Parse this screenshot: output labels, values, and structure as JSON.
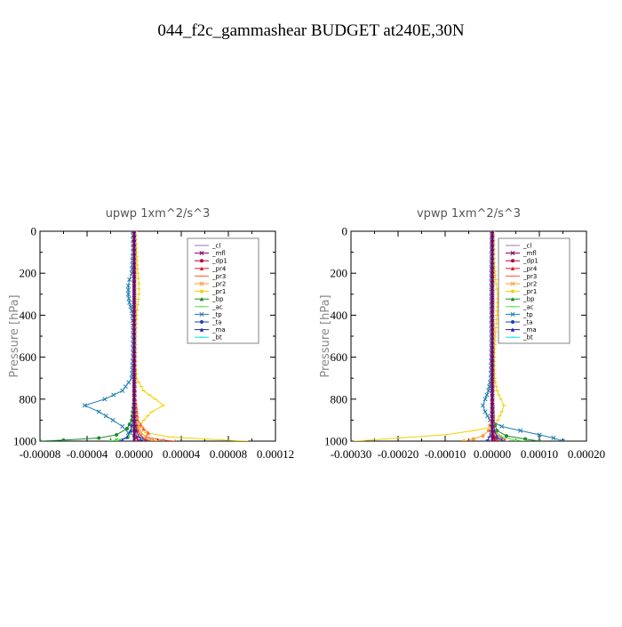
{
  "figure_title": "044_f2c_gammashear  BUDGET at240E,30N",
  "legend_labels": [
    "_cl",
    "_mfl",
    "_dp1",
    "_pr4",
    "_pr3",
    "_pr2",
    "_pr1",
    "_bp",
    "_ac",
    "_tp",
    "_ta",
    "_ma",
    "_bt"
  ],
  "colors": {
    "_cl": "#a070c0",
    "_mfl": "#800060",
    "_dp1": "#b0003a",
    "_pr4": "#e02020",
    "_pr3": "#ff5a3a",
    "_pr2": "#ff9a30",
    "_pr1": "#f2d000",
    "_bp": "#1a8a2a",
    "_ac": "#50e040",
    "_tp": "#1f7fb0",
    "_ta": "#1f3fbf",
    "_ma": "#2020a0",
    "_bt": "#00e0e8"
  },
  "chart_data": [
    {
      "type": "line",
      "title": "upwp   1xm^2/s^3",
      "ylabel": "Pressure [hPa]",
      "xlabel": "",
      "xlim": [
        -8e-05,
        0.00012
      ],
      "ylim": [
        1000,
        0
      ],
      "x_ticks": [
        "-0.00008",
        "-0.00004",
        "0.00000",
        "0.00004",
        "0.00008",
        "0.00012"
      ],
      "y_ticks": [
        "0",
        "200",
        "400",
        "600",
        "800",
        "1000"
      ],
      "legend_position": "top-right",
      "series": [
        {
          "name": "_pr1",
          "pressure": [
            0,
            100,
            200,
            250,
            300,
            350,
            400,
            500,
            600,
            700,
            760,
            800,
            830,
            860,
            900,
            930,
            960,
            980,
            990,
            1000
          ],
          "values": [
            1e-06,
            2e-06,
            3e-06,
            4e-06,
            4e-06,
            3e-06,
            2e-06,
            1e-06,
            1e-06,
            2e-06,
            8e-06,
            1.8e-05,
            2.5e-05,
            1.5e-05,
            8e-06,
            5e-06,
            1e-05,
            3e-05,
            6e-05,
            9.5e-05
          ]
        },
        {
          "name": "_tp",
          "pressure": [
            0,
            100,
            200,
            230,
            260,
            300,
            340,
            380,
            450,
            600,
            700,
            760,
            800,
            830,
            860,
            900,
            930,
            960,
            990,
            1000
          ],
          "values": [
            -1e-06,
            -1e-06,
            -2e-06,
            -4e-06,
            -5e-06,
            -5e-06,
            -4e-06,
            -2e-06,
            -1e-06,
            -1e-06,
            -2e-06,
            -1e-05,
            -2.5e-05,
            -4.2e-05,
            -3e-05,
            -1.8e-05,
            -1e-05,
            -5e-06,
            8e-06,
            1.5e-05
          ]
        },
        {
          "name": "_bp",
          "pressure": [
            0,
            400,
            800,
            900,
            940,
            970,
            985,
            995,
            1000
          ],
          "values": [
            0,
            0,
            0,
            -2e-06,
            -6e-06,
            -1.5e-05,
            -3e-05,
            -6e-05,
            -8e-05
          ]
        },
        {
          "name": "_pr3",
          "pressure": [
            0,
            400,
            800,
            900,
            940,
            960,
            980,
            995,
            1000
          ],
          "values": [
            0,
            0,
            1e-06,
            3e-06,
            8e-06,
            1.2e-05,
            1e-05,
            2.5e-05,
            3.5e-05
          ]
        },
        {
          "name": "_pr4",
          "pressure": [
            0,
            400,
            800,
            900,
            950,
            970,
            985,
            995,
            1000
          ],
          "values": [
            0,
            0,
            0,
            2e-06,
            3e-06,
            5e-06,
            8e-06,
            1e-05,
            1.2e-05
          ]
        },
        {
          "name": "_pr2",
          "pressure": [
            0,
            400,
            800,
            900,
            940,
            960,
            980,
            995,
            1000
          ],
          "values": [
            0,
            0,
            0,
            2e-06,
            4e-06,
            6e-06,
            1e-05,
            1.5e-05,
            2e-05
          ]
        },
        {
          "name": "_ac",
          "pressure": [
            0,
            400,
            800,
            900,
            950,
            980,
            995,
            1000
          ],
          "values": [
            0,
            0,
            0,
            0,
            -2e-06,
            -5e-06,
            -1.5e-05,
            -2e-05
          ]
        },
        {
          "name": "_ta",
          "pressure": [
            0,
            400,
            800,
            900,
            950,
            980,
            995,
            1000
          ],
          "values": [
            0,
            0,
            0,
            -1e-06,
            -3e-06,
            -6e-06,
            -1e-05,
            -1.2e-05
          ]
        },
        {
          "name": "_ma",
          "pressure": [
            0,
            400,
            800,
            900,
            950,
            980,
            995,
            1000
          ],
          "values": [
            0,
            0,
            0,
            1e-06,
            2e-06,
            4e-06,
            6e-06,
            8e-06
          ]
        },
        {
          "name": "_cl",
          "pressure": [
            0,
            200,
            400,
            600,
            800,
            900,
            950,
            1000
          ],
          "values": [
            0,
            0,
            0,
            0,
            0,
            0,
            0,
            0
          ]
        },
        {
          "name": "_bt",
          "pressure": [
            0,
            200,
            400,
            600,
            800,
            900,
            950,
            1000
          ],
          "values": [
            0,
            0,
            0,
            0,
            0,
            0,
            0,
            0
          ]
        },
        {
          "name": "_dp1",
          "pressure": [
            0,
            400,
            800,
            900,
            950,
            980,
            995,
            1000
          ],
          "values": [
            0,
            0,
            0,
            0,
            1e-06,
            2e-06,
            3e-06,
            4e-06
          ]
        },
        {
          "name": "_mfl",
          "pressure": [
            0,
            200,
            400,
            600,
            800,
            900,
            950,
            1000
          ],
          "values": [
            0,
            0,
            0,
            0,
            0,
            0,
            0,
            0
          ]
        }
      ]
    },
    {
      "type": "line",
      "title": "vpwp   1xm^2/s^3",
      "ylabel": "Pressure [hPa]",
      "xlabel": "",
      "xlim": [
        -0.0003,
        0.0002
      ],
      "ylim": [
        1000,
        0
      ],
      "x_ticks": [
        "-0.00030",
        "-0.00020",
        "-0.00010",
        "0.00000",
        "0.00010",
        "0.00020"
      ],
      "y_ticks": [
        "0",
        "200",
        "400",
        "600",
        "800",
        "1000"
      ],
      "legend_position": "top-right",
      "series": [
        {
          "name": "_pr1",
          "pressure": [
            0,
            150,
            250,
            300,
            400,
            500,
            600,
            700,
            760,
            800,
            830,
            860,
            900,
            930,
            950,
            970,
            985,
            1000
          ],
          "values": [
            2e-06,
            4e-06,
            8e-06,
            1.2e-05,
            1e-05,
            6e-06,
            4e-06,
            5e-06,
            1e-05,
            1.8e-05,
            2.5e-05,
            2e-05,
            1.2e-05,
            5e-06,
            -4e-05,
            -0.0001,
            -0.0002,
            -0.00029
          ]
        },
        {
          "name": "_tp",
          "pressure": [
            0,
            200,
            400,
            600,
            700,
            760,
            800,
            830,
            860,
            900,
            930,
            950,
            970,
            985,
            1000
          ],
          "values": [
            -1e-06,
            -2e-06,
            -2e-06,
            -2e-06,
            -3e-06,
            -8e-06,
            -1.5e-05,
            -2e-05,
            -1.5e-05,
            -5e-06,
            2e-05,
            6e-05,
            0.0001,
            0.00013,
            0.00015
          ]
        },
        {
          "name": "_bp",
          "pressure": [
            0,
            400,
            800,
            900,
            950,
            975,
            990,
            1000
          ],
          "values": [
            0,
            0,
            0,
            2e-06,
            1e-05,
            3e-05,
            7e-05,
            0.0001
          ]
        },
        {
          "name": "_ac",
          "pressure": [
            0,
            400,
            800,
            900,
            950,
            980,
            995,
            1000
          ],
          "values": [
            0,
            0,
            0,
            1e-06,
            5e-06,
            2e-05,
            5e-05,
            7e-05
          ]
        },
        {
          "name": "_pr3",
          "pressure": [
            0,
            400,
            800,
            900,
            950,
            975,
            990,
            1000
          ],
          "values": [
            0,
            0,
            1e-06,
            2e-06,
            5e-06,
            1.2e-05,
            2.5e-05,
            3e-05
          ]
        },
        {
          "name": "_pr4",
          "pressure": [
            0,
            400,
            800,
            900,
            950,
            980,
            995,
            1000
          ],
          "values": [
            0,
            0,
            0,
            1e-06,
            2e-06,
            6e-06,
            1e-05,
            1.2e-05
          ]
        },
        {
          "name": "_pr2",
          "pressure": [
            0,
            400,
            800,
            900,
            950,
            975,
            990,
            1000
          ],
          "values": [
            0,
            0,
            0,
            -2e-06,
            -8e-06,
            -2e-05,
            -4e-05,
            -6e-05
          ]
        },
        {
          "name": "_ta",
          "pressure": [
            0,
            400,
            800,
            900,
            950,
            980,
            995,
            1000
          ],
          "values": [
            0,
            0,
            0,
            1e-06,
            4e-06,
            1e-05,
            2e-05,
            2.5e-05
          ]
        },
        {
          "name": "_ma",
          "pressure": [
            0,
            400,
            800,
            900,
            950,
            980,
            995,
            1000
          ],
          "values": [
            0,
            0,
            0,
            -1e-06,
            -3e-06,
            -6e-06,
            -1e-05,
            -1.2e-05
          ]
        },
        {
          "name": "_cl",
          "pressure": [
            0,
            200,
            400,
            600,
            800,
            900,
            950,
            1000
          ],
          "values": [
            0,
            0,
            0,
            0,
            0,
            0,
            0,
            0
          ]
        },
        {
          "name": "_bt",
          "pressure": [
            0,
            200,
            400,
            600,
            800,
            900,
            950,
            1000
          ],
          "values": [
            0,
            0,
            0,
            0,
            0,
            0,
            0,
            0
          ]
        },
        {
          "name": "_dp1",
          "pressure": [
            0,
            400,
            800,
            900,
            950,
            980,
            995,
            1000
          ],
          "values": [
            0,
            0,
            0,
            0,
            1e-06,
            3e-06,
            5e-06,
            6e-06
          ]
        },
        {
          "name": "_mfl",
          "pressure": [
            0,
            200,
            400,
            600,
            800,
            900,
            950,
            1000
          ],
          "values": [
            0,
            0,
            0,
            0,
            0,
            0,
            0,
            0
          ]
        }
      ]
    }
  ]
}
